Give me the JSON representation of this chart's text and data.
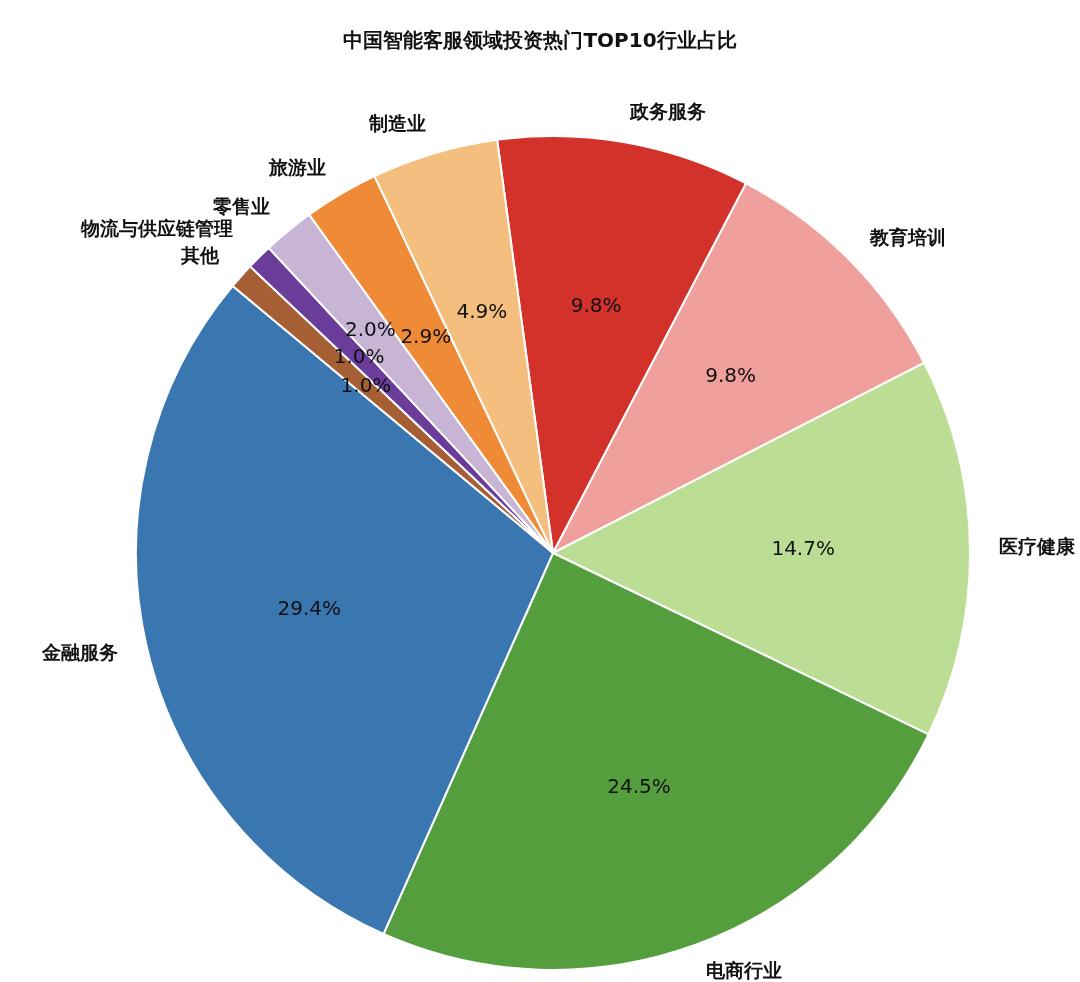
{
  "chart_data": {
    "type": "pie",
    "title": "中国智能客服领域投资热门TOP10行业占比",
    "categories": [
      "政务服务",
      "教育培训",
      "医疗健康",
      "电商行业",
      "金融服务",
      "其他",
      "物流与供应链管理",
      "零售业",
      "旅游业",
      "制造业"
    ],
    "values": [
      9.8,
      9.8,
      14.7,
      24.5,
      29.4,
      1.0,
      1.0,
      2.0,
      2.9,
      4.9
    ],
    "value_labels": [
      "9.8%",
      "9.8%",
      "14.7%",
      "24.5%",
      "29.4%",
      "1.0%",
      "1.0%",
      "2.0%",
      "2.9%",
      "4.9%"
    ],
    "colors": [
      "#d3322b",
      "#f0a09c",
      "#bcdd94",
      "#559e3e",
      "#3a77b0",
      "#a65f35",
      "#6a3d9a",
      "#c8b5d6",
      "#ef8a36",
      "#f4bf7e"
    ],
    "legend": false
  }
}
